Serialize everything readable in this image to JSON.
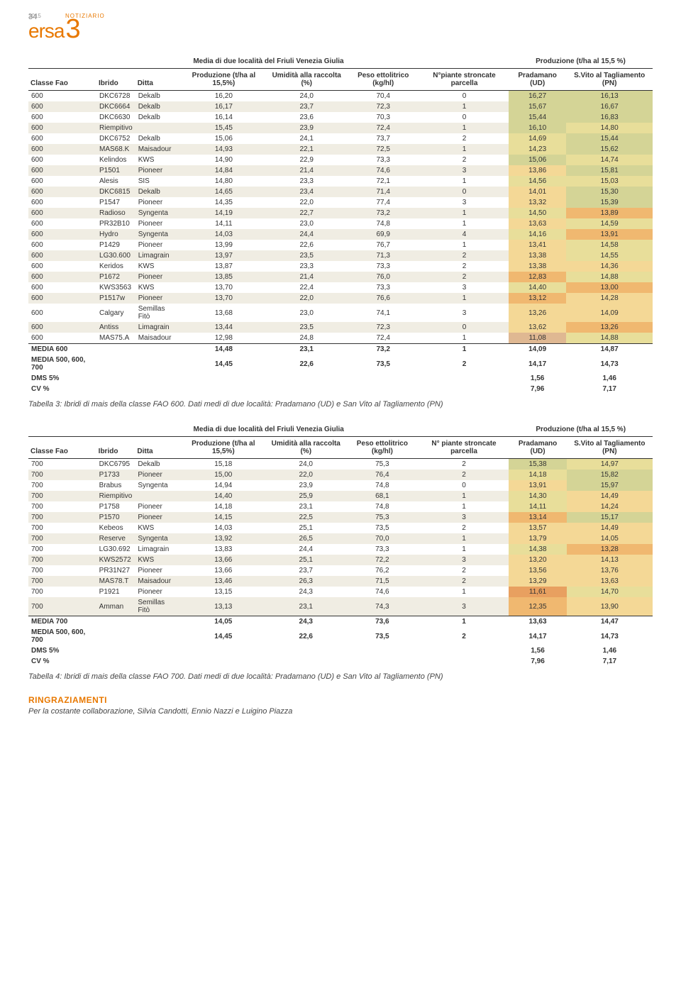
{
  "page_number": "34",
  "logo": {
    "year": "2015",
    "notiziario": "NOTIZIARIO",
    "brand": "ersa",
    "suffix": "3"
  },
  "table3": {
    "title_group_left": "Media di due località del Friuli Venezia Giulia",
    "title_group_right": "Produzione (t/ha al 15,5 %)",
    "columns": [
      "Classe Fao",
      "Ibrido",
      "Ditta",
      "Produzione (t/ha al 15,5%)",
      "Umidità alla raccolta (%)",
      "Peso ettolitrico (kg/hl)",
      "N°piante stroncate parcella",
      "Pradamano (UD)",
      "S.Vito al Tagliamento (PN)"
    ],
    "rows": [
      [
        "600",
        "DKC6728",
        "Dekalb",
        "16,20",
        "24,0",
        "70,4",
        "0",
        "16,27",
        "16,13"
      ],
      [
        "600",
        "DKC6664",
        "Dekalb",
        "16,17",
        "23,7",
        "72,3",
        "1",
        "15,67",
        "16,67"
      ],
      [
        "600",
        "DKC6630",
        "Dekalb",
        "16,14",
        "23,6",
        "70,3",
        "0",
        "15,44",
        "16,83"
      ],
      [
        "600",
        "Riempitivo",
        "",
        "15,45",
        "23,9",
        "72,4",
        "1",
        "16,10",
        "14,80"
      ],
      [
        "600",
        "DKC6752",
        "Dekalb",
        "15,06",
        "24,1",
        "73,7",
        "2",
        "14,69",
        "15,44"
      ],
      [
        "600",
        "MAS68.K",
        "Maisadour",
        "14,93",
        "22,1",
        "72,5",
        "1",
        "14,23",
        "15,62"
      ],
      [
        "600",
        "Kelindos",
        "KWS",
        "14,90",
        "22,9",
        "73,3",
        "2",
        "15,06",
        "14,74"
      ],
      [
        "600",
        "P1501",
        "Pioneer",
        "14,84",
        "21,4",
        "74,6",
        "3",
        "13,86",
        "15,81"
      ],
      [
        "600",
        "Alesis",
        "SIS",
        "14,80",
        "23,3",
        "72,1",
        "1",
        "14,56",
        "15,03"
      ],
      [
        "600",
        "DKC6815",
        "Dekalb",
        "14,65",
        "23,4",
        "71,4",
        "0",
        "14,01",
        "15,30"
      ],
      [
        "600",
        "P1547",
        "Pioneer",
        "14,35",
        "22,0",
        "77,4",
        "3",
        "13,32",
        "15,39"
      ],
      [
        "600",
        "Radioso",
        "Syngenta",
        "14,19",
        "22,7",
        "73,2",
        "1",
        "14,50",
        "13,89"
      ],
      [
        "600",
        "PR32B10",
        "Pioneer",
        "14,11",
        "23,0",
        "74,8",
        "1",
        "13,63",
        "14,59"
      ],
      [
        "600",
        "Hydro",
        "Syngenta",
        "14,03",
        "24,4",
        "69,9",
        "4",
        "14,16",
        "13,91"
      ],
      [
        "600",
        "P1429",
        "Pioneer",
        "13,99",
        "22,6",
        "76,7",
        "1",
        "13,41",
        "14,58"
      ],
      [
        "600",
        "LG30.600",
        "Limagrain",
        "13,97",
        "23,5",
        "71,3",
        "2",
        "13,38",
        "14,55"
      ],
      [
        "600",
        "Keridos",
        "KWS",
        "13,87",
        "23,3",
        "73,3",
        "2",
        "13,38",
        "14,36"
      ],
      [
        "600",
        "P1672",
        "Pioneer",
        "13,85",
        "21,4",
        "76,0",
        "2",
        "12,83",
        "14,88"
      ],
      [
        "600",
        "KWS3563",
        "KWS",
        "13,70",
        "22,4",
        "73,3",
        "3",
        "14,40",
        "13,00"
      ],
      [
        "600",
        "P1517w",
        "Pioneer",
        "13,70",
        "22,0",
        "76,6",
        "1",
        "13,12",
        "14,28"
      ],
      [
        "600",
        "Calgary",
        "Semillas Fitò",
        "13,68",
        "23,0",
        "74,1",
        "3",
        "13,26",
        "14,09"
      ],
      [
        "600",
        "Antiss",
        "Limagrain",
        "13,44",
        "23,5",
        "72,3",
        "0",
        "13,62",
        "13,26"
      ],
      [
        "600",
        "MAS75.A",
        "Maisadour",
        "12,98",
        "24,8",
        "72,4",
        "1",
        "11,08",
        "14,88"
      ]
    ],
    "heat_colors_ud": [
      "#d4d496",
      "#d4d496",
      "#d4d496",
      "#d4d496",
      "#e8de9a",
      "#e8de9a",
      "#d4d496",
      "#f4d896",
      "#e8de9a",
      "#f4d896",
      "#f4d896",
      "#e8de9a",
      "#f4d896",
      "#e8de9a",
      "#f4d896",
      "#f4d896",
      "#f4d896",
      "#f0b870",
      "#e8de9a",
      "#f0b870",
      "#f4d896",
      "#f4d896",
      "#dfb892"
    ],
    "heat_colors_pn": [
      "#d4d496",
      "#d4d496",
      "#d4d496",
      "#e8de9a",
      "#d4d496",
      "#d4d496",
      "#e8de9a",
      "#d4d496",
      "#e8de9a",
      "#d4d496",
      "#d4d496",
      "#f0b870",
      "#e8de9a",
      "#f0b870",
      "#e8de9a",
      "#e8de9a",
      "#f4d896",
      "#e8de9a",
      "#f0b870",
      "#f4d896",
      "#f4d896",
      "#f0b870",
      "#e8de9a"
    ],
    "footer_rows": [
      [
        "MEDIA 600",
        "",
        "",
        "14,48",
        "23,1",
        "73,2",
        "1",
        "14,09",
        "14,87"
      ],
      [
        "MEDIA 500, 600, 700",
        "",
        "",
        "14,45",
        "22,6",
        "73,5",
        "2",
        "14,17",
        "14,73"
      ],
      [
        "DMS 5%",
        "",
        "",
        "",
        "",
        "",
        "",
        "1,56",
        "1,46"
      ],
      [
        "CV %",
        "",
        "",
        "",
        "",
        "",
        "",
        "7,96",
        "7,17"
      ]
    ],
    "caption": "Tabella 3: Ibridi di mais della classe FAO 600. Dati medi di due località: Pradamano (UD) e San Vito al Tagliamento (PN)"
  },
  "table4": {
    "title_group_left": "Media di due località del Friuli Venezia Giulia",
    "title_group_right": "Produzione (t/ha al 15,5 %)",
    "columns": [
      "Classe Fao",
      "Ibrido",
      "Ditta",
      "Produzione (t/ha al 15,5%)",
      "Umidità alla raccolta (%)",
      "Peso ettolitrico (kg/hl)",
      "N° piante stroncate parcella",
      "Pradamano (UD)",
      "S.Vito al Tagliamento (PN)"
    ],
    "rows": [
      [
        "700",
        "DKC6795",
        "Dekalb",
        "15,18",
        "24,0",
        "75,3",
        "2",
        "15,38",
        "14,97"
      ],
      [
        "700",
        "P1733",
        "Pioneer",
        "15,00",
        "22,0",
        "76,4",
        "2",
        "14,18",
        "15,82"
      ],
      [
        "700",
        "Brabus",
        "Syngenta",
        "14,94",
        "23,9",
        "74,8",
        "0",
        "13,91",
        "15,97"
      ],
      [
        "700",
        "Riempitivo",
        "",
        "14,40",
        "25,9",
        "68,1",
        "1",
        "14,30",
        "14,49"
      ],
      [
        "700",
        "P1758",
        "Pioneer",
        "14,18",
        "23,1",
        "74,8",
        "1",
        "14,11",
        "14,24"
      ],
      [
        "700",
        "P1570",
        "Pioneer",
        "14,15",
        "22,5",
        "75,3",
        "3",
        "13,14",
        "15,17"
      ],
      [
        "700",
        "Kebeos",
        "KWS",
        "14,03",
        "25,1",
        "73,5",
        "2",
        "13,57",
        "14,49"
      ],
      [
        "700",
        "Reserve",
        "Syngenta",
        "13,92",
        "26,5",
        "70,0",
        "1",
        "13,79",
        "14,05"
      ],
      [
        "700",
        "LG30.692",
        "Limagrain",
        "13,83",
        "24,4",
        "73,3",
        "1",
        "14,38",
        "13,28"
      ],
      [
        "700",
        "KWS2572",
        "KWS",
        "13,66",
        "25,1",
        "72,2",
        "3",
        "13,20",
        "14,13"
      ],
      [
        "700",
        "PR31N27",
        "Pioneer",
        "13,66",
        "23,7",
        "76,2",
        "2",
        "13,56",
        "13,76"
      ],
      [
        "700",
        "MAS78.T",
        "Maisadour",
        "13,46",
        "26,3",
        "71,5",
        "2",
        "13,29",
        "13,63"
      ],
      [
        "700",
        "P1921",
        "Pioneer",
        "13,15",
        "24,3",
        "74,6",
        "1",
        "11,61",
        "14,70"
      ],
      [
        "700",
        "Amman",
        "Semillas Fitò",
        "13,13",
        "23,1",
        "74,3",
        "3",
        "12,35",
        "13,90"
      ]
    ],
    "heat_colors_ud": [
      "#d4d496",
      "#e8de9a",
      "#f4d896",
      "#e8de9a",
      "#e8de9a",
      "#f0b870",
      "#f4d896",
      "#f4d896",
      "#e8de9a",
      "#f4d896",
      "#f4d896",
      "#f4d896",
      "#e8a060",
      "#f0b870"
    ],
    "heat_colors_pn": [
      "#e8de9a",
      "#d4d496",
      "#d4d496",
      "#f4d896",
      "#f4d896",
      "#d4d496",
      "#f4d896",
      "#f4d896",
      "#f0b870",
      "#f4d896",
      "#f4d896",
      "#f4d896",
      "#e8de9a",
      "#f4d896"
    ],
    "footer_rows": [
      [
        "MEDIA 700",
        "",
        "",
        "14,05",
        "24,3",
        "73,6",
        "1",
        "13,63",
        "14,47"
      ],
      [
        "MEDIA 500, 600, 700",
        "",
        "",
        "14,45",
        "22,6",
        "73,5",
        "2",
        "14,17",
        "14,73"
      ],
      [
        "DMS 5%",
        "",
        "",
        "",
        "",
        "",
        "",
        "1,56",
        "1,46"
      ],
      [
        "CV %",
        "",
        "",
        "",
        "",
        "",
        "",
        "7,96",
        "7,17"
      ]
    ],
    "caption": "Tabella 4: Ibridi di mais della classe FAO 700. Dati medi di due località: Pradamano (UD) e San Vito al Tagliamento (PN)"
  },
  "ringraziamenti": {
    "heading": "RINGRAZIAMENTI",
    "body": "Per la costante collaborazione, Silvia Candotti, Ennio Nazzi e Luigino Piazza"
  }
}
